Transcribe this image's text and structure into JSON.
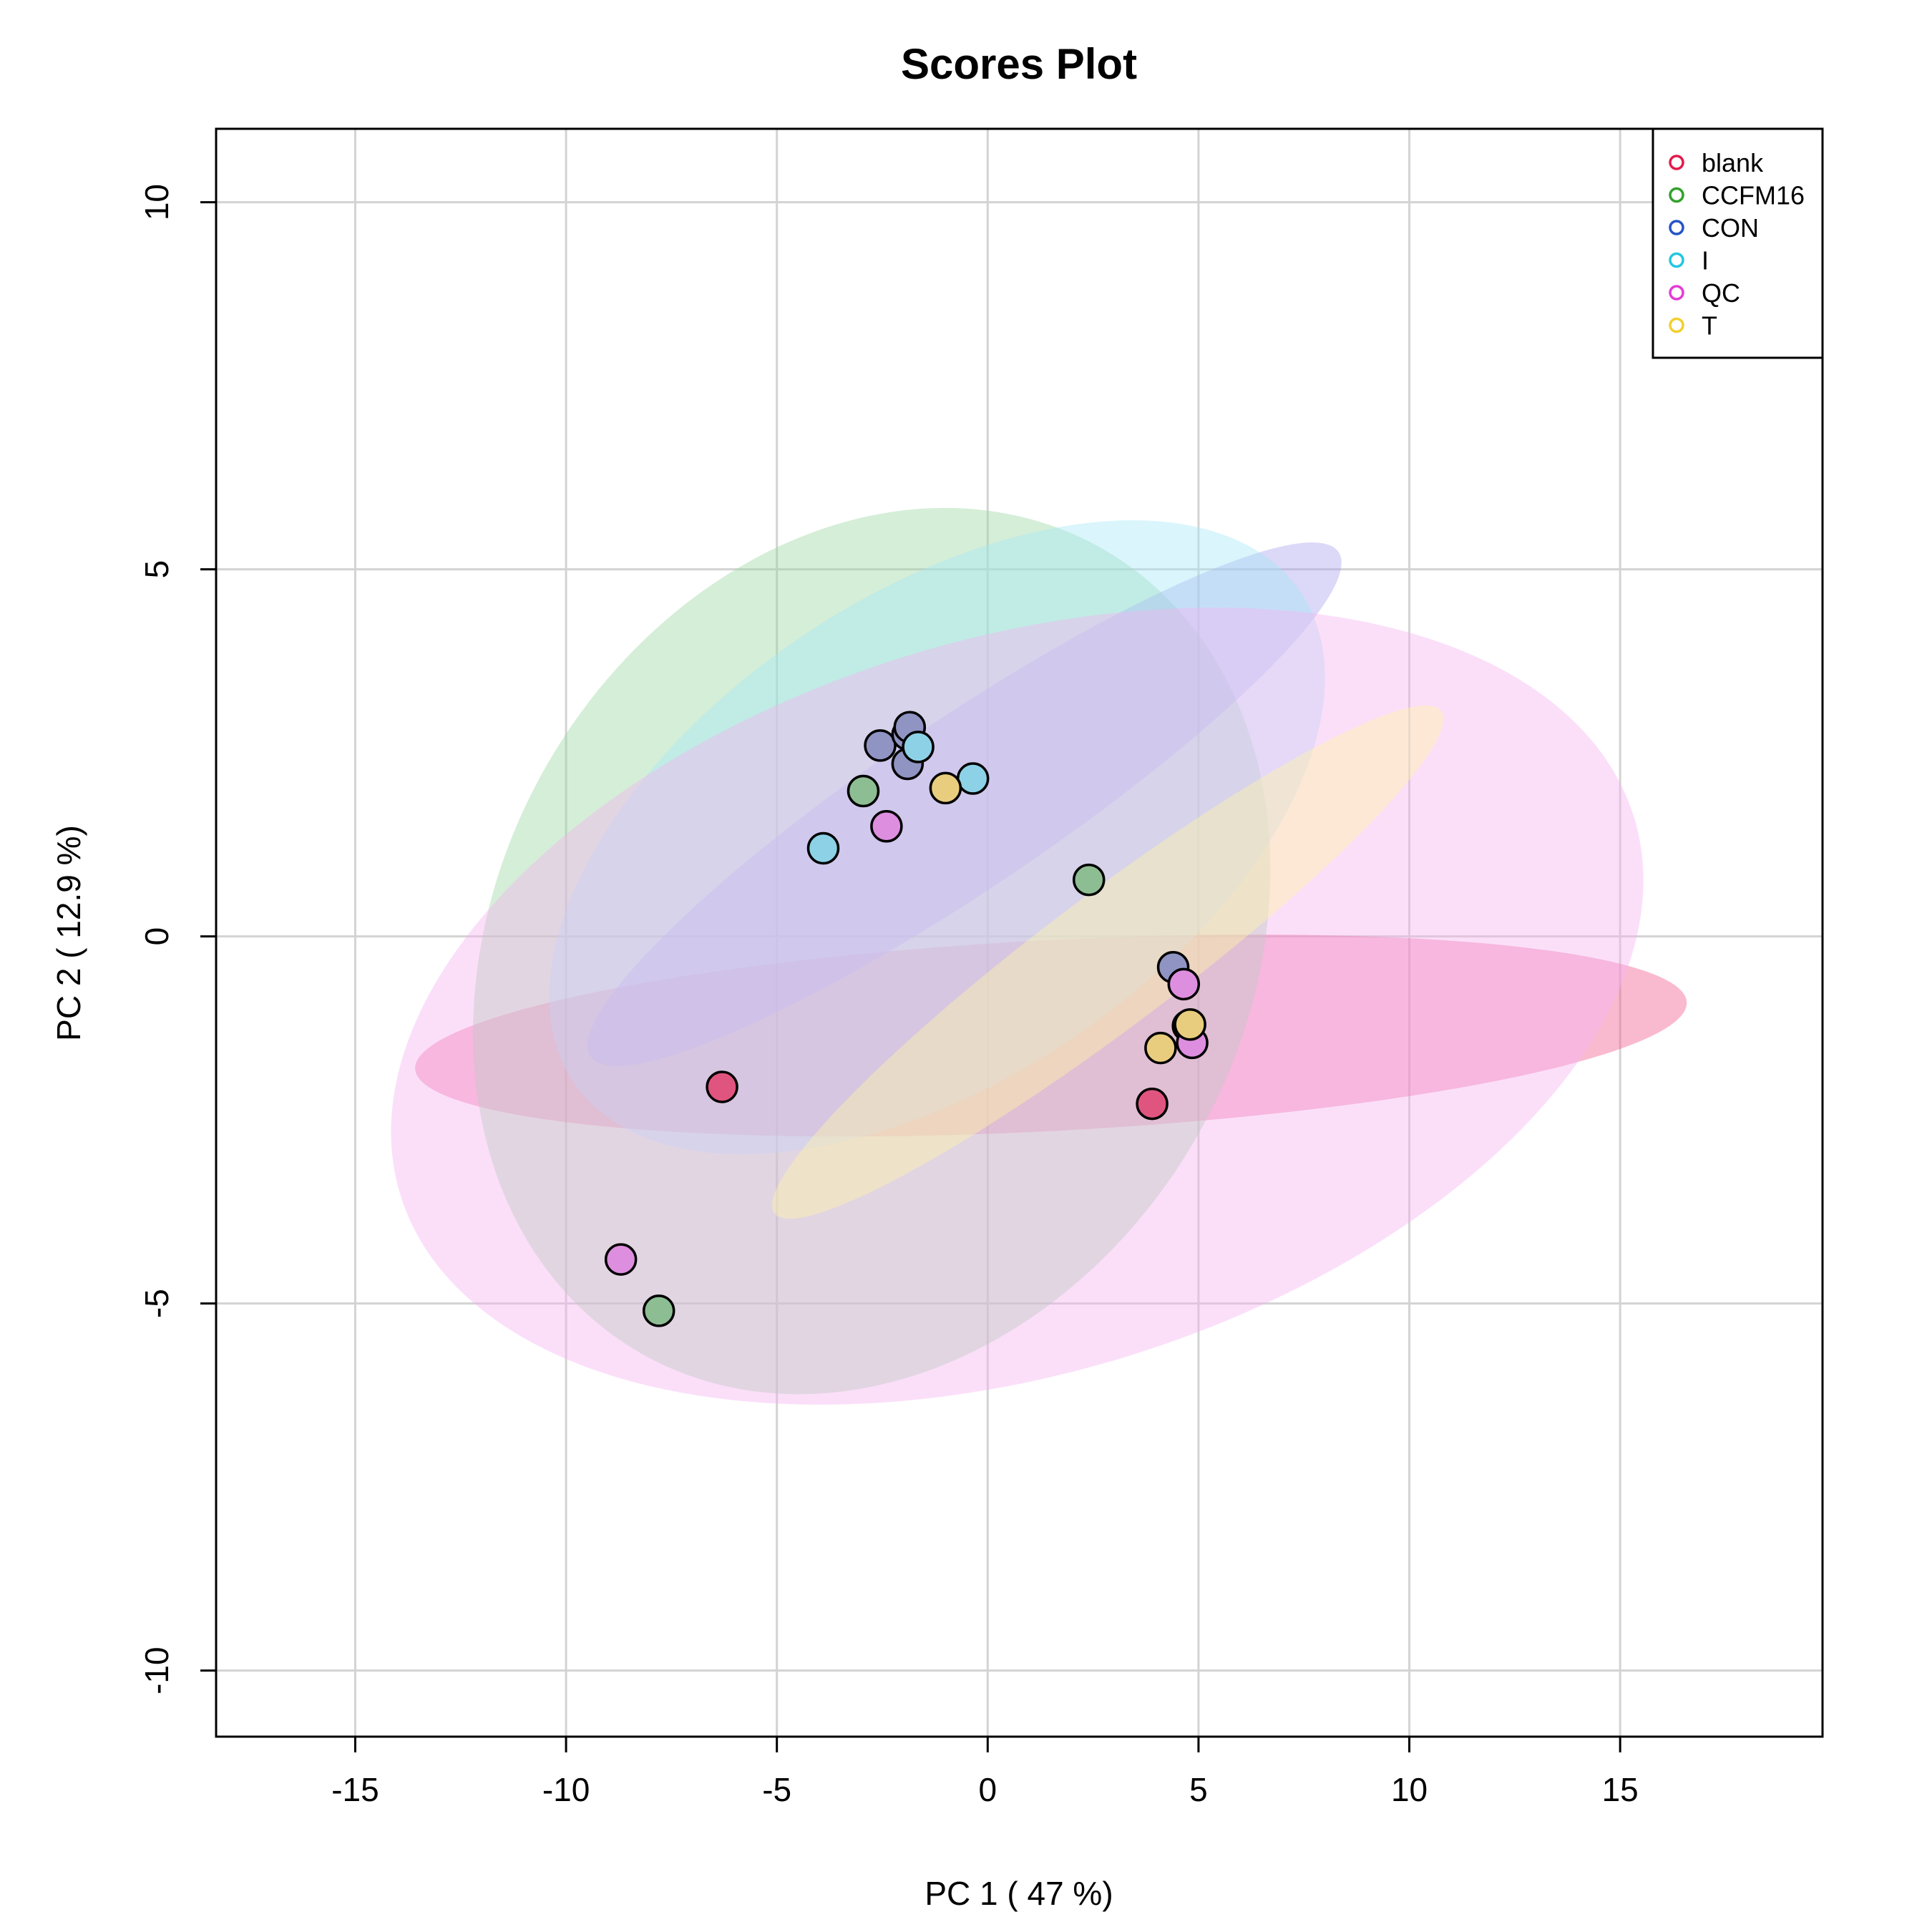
{
  "chart_data": {
    "type": "scatter",
    "title": "Scores Plot",
    "xlabel": "PC 1 ( 47 %)",
    "ylabel": "PC 2 ( 12.9 %)",
    "xlim": [
      -18.3,
      19.8
    ],
    "ylim": [
      -10.9,
      11.0
    ],
    "x_ticks": [
      -15,
      -10,
      -5,
      0,
      5,
      10,
      15
    ],
    "y_ticks": [
      -10,
      -5,
      0,
      5,
      10
    ],
    "grid": true,
    "legend_position": "top-right",
    "legend_marker": "open-circle",
    "series": [
      {
        "name": "blank",
        "color": "#E41A4B",
        "ellipse_fill": "#F05A8E",
        "fill": "#E0557F",
        "points": [
          [
            -6.3,
            -2.05
          ],
          [
            3.9,
            -2.28
          ]
        ],
        "ellipse": {
          "center": [
            1.5,
            -1.35
          ],
          "rx": 15.1,
          "ry": 1.3,
          "angle_deg": 3.0
        }
      },
      {
        "name": "CCFM16",
        "color": "#33A02C",
        "ellipse_fill": "#9CD6A3",
        "fill": "#8DBE93",
        "points": [
          [
            -2.95,
            1.98
          ],
          [
            2.4,
            0.77
          ],
          [
            -7.8,
            -5.1
          ]
        ],
        "ellipse": {
          "center": [
            -2.75,
            -0.2
          ],
          "rx": 11.0,
          "ry": 5.1,
          "angle_deg": 60.0
        }
      },
      {
        "name": "CON",
        "color": "#2554C7",
        "ellipse_fill": "#A9A2EE",
        "fill": "#9094C3",
        "points": [
          [
            -2.55,
            2.6
          ],
          [
            -1.9,
            2.35
          ],
          [
            -1.9,
            2.75
          ],
          [
            -1.85,
            2.85
          ],
          [
            4.4,
            -0.42
          ],
          [
            4.75,
            -1.22
          ]
        ],
        "ellipse": {
          "center": [
            -0.55,
            1.8
          ],
          "rx": 10.7,
          "ry": 1.15,
          "angle_deg": 34.0
        }
      },
      {
        "name": "I",
        "color": "#22C7E0",
        "ellipse_fill": "#A6E8F8",
        "fill": "#8DD1E6",
        "points": [
          [
            -1.65,
            2.58
          ],
          [
            -0.35,
            2.15
          ],
          [
            -3.9,
            1.2
          ]
        ],
        "ellipse": {
          "center": [
            -1.2,
            1.35
          ],
          "rx": 10.4,
          "ry": 3.3,
          "angle_deg": 34.0
        }
      },
      {
        "name": "QC",
        "color": "#E53BD6",
        "ellipse_fill": "#F6B2F1",
        "fill": "#DE8EDF",
        "points": [
          [
            -2.4,
            1.5
          ],
          [
            4.65,
            -0.65
          ],
          [
            4.85,
            -1.45
          ],
          [
            -8.7,
            -4.4
          ]
        ],
        "ellipse": {
          "center": [
            0.7,
            -0.95
          ],
          "rx": 15.3,
          "ry": 5.0,
          "angle_deg": 17.0
        }
      },
      {
        "name": "T",
        "color": "#F2CF2E",
        "ellipse_fill": "#FFF5A8",
        "fill": "#E9CD7E",
        "points": [
          [
            -1.0,
            2.02
          ],
          [
            4.1,
            -1.52
          ],
          [
            4.8,
            -1.2
          ]
        ],
        "ellipse": {
          "center": [
            2.85,
            -0.35
          ],
          "rx": 9.9,
          "ry": 0.9,
          "angle_deg": 37.0
        }
      }
    ]
  }
}
